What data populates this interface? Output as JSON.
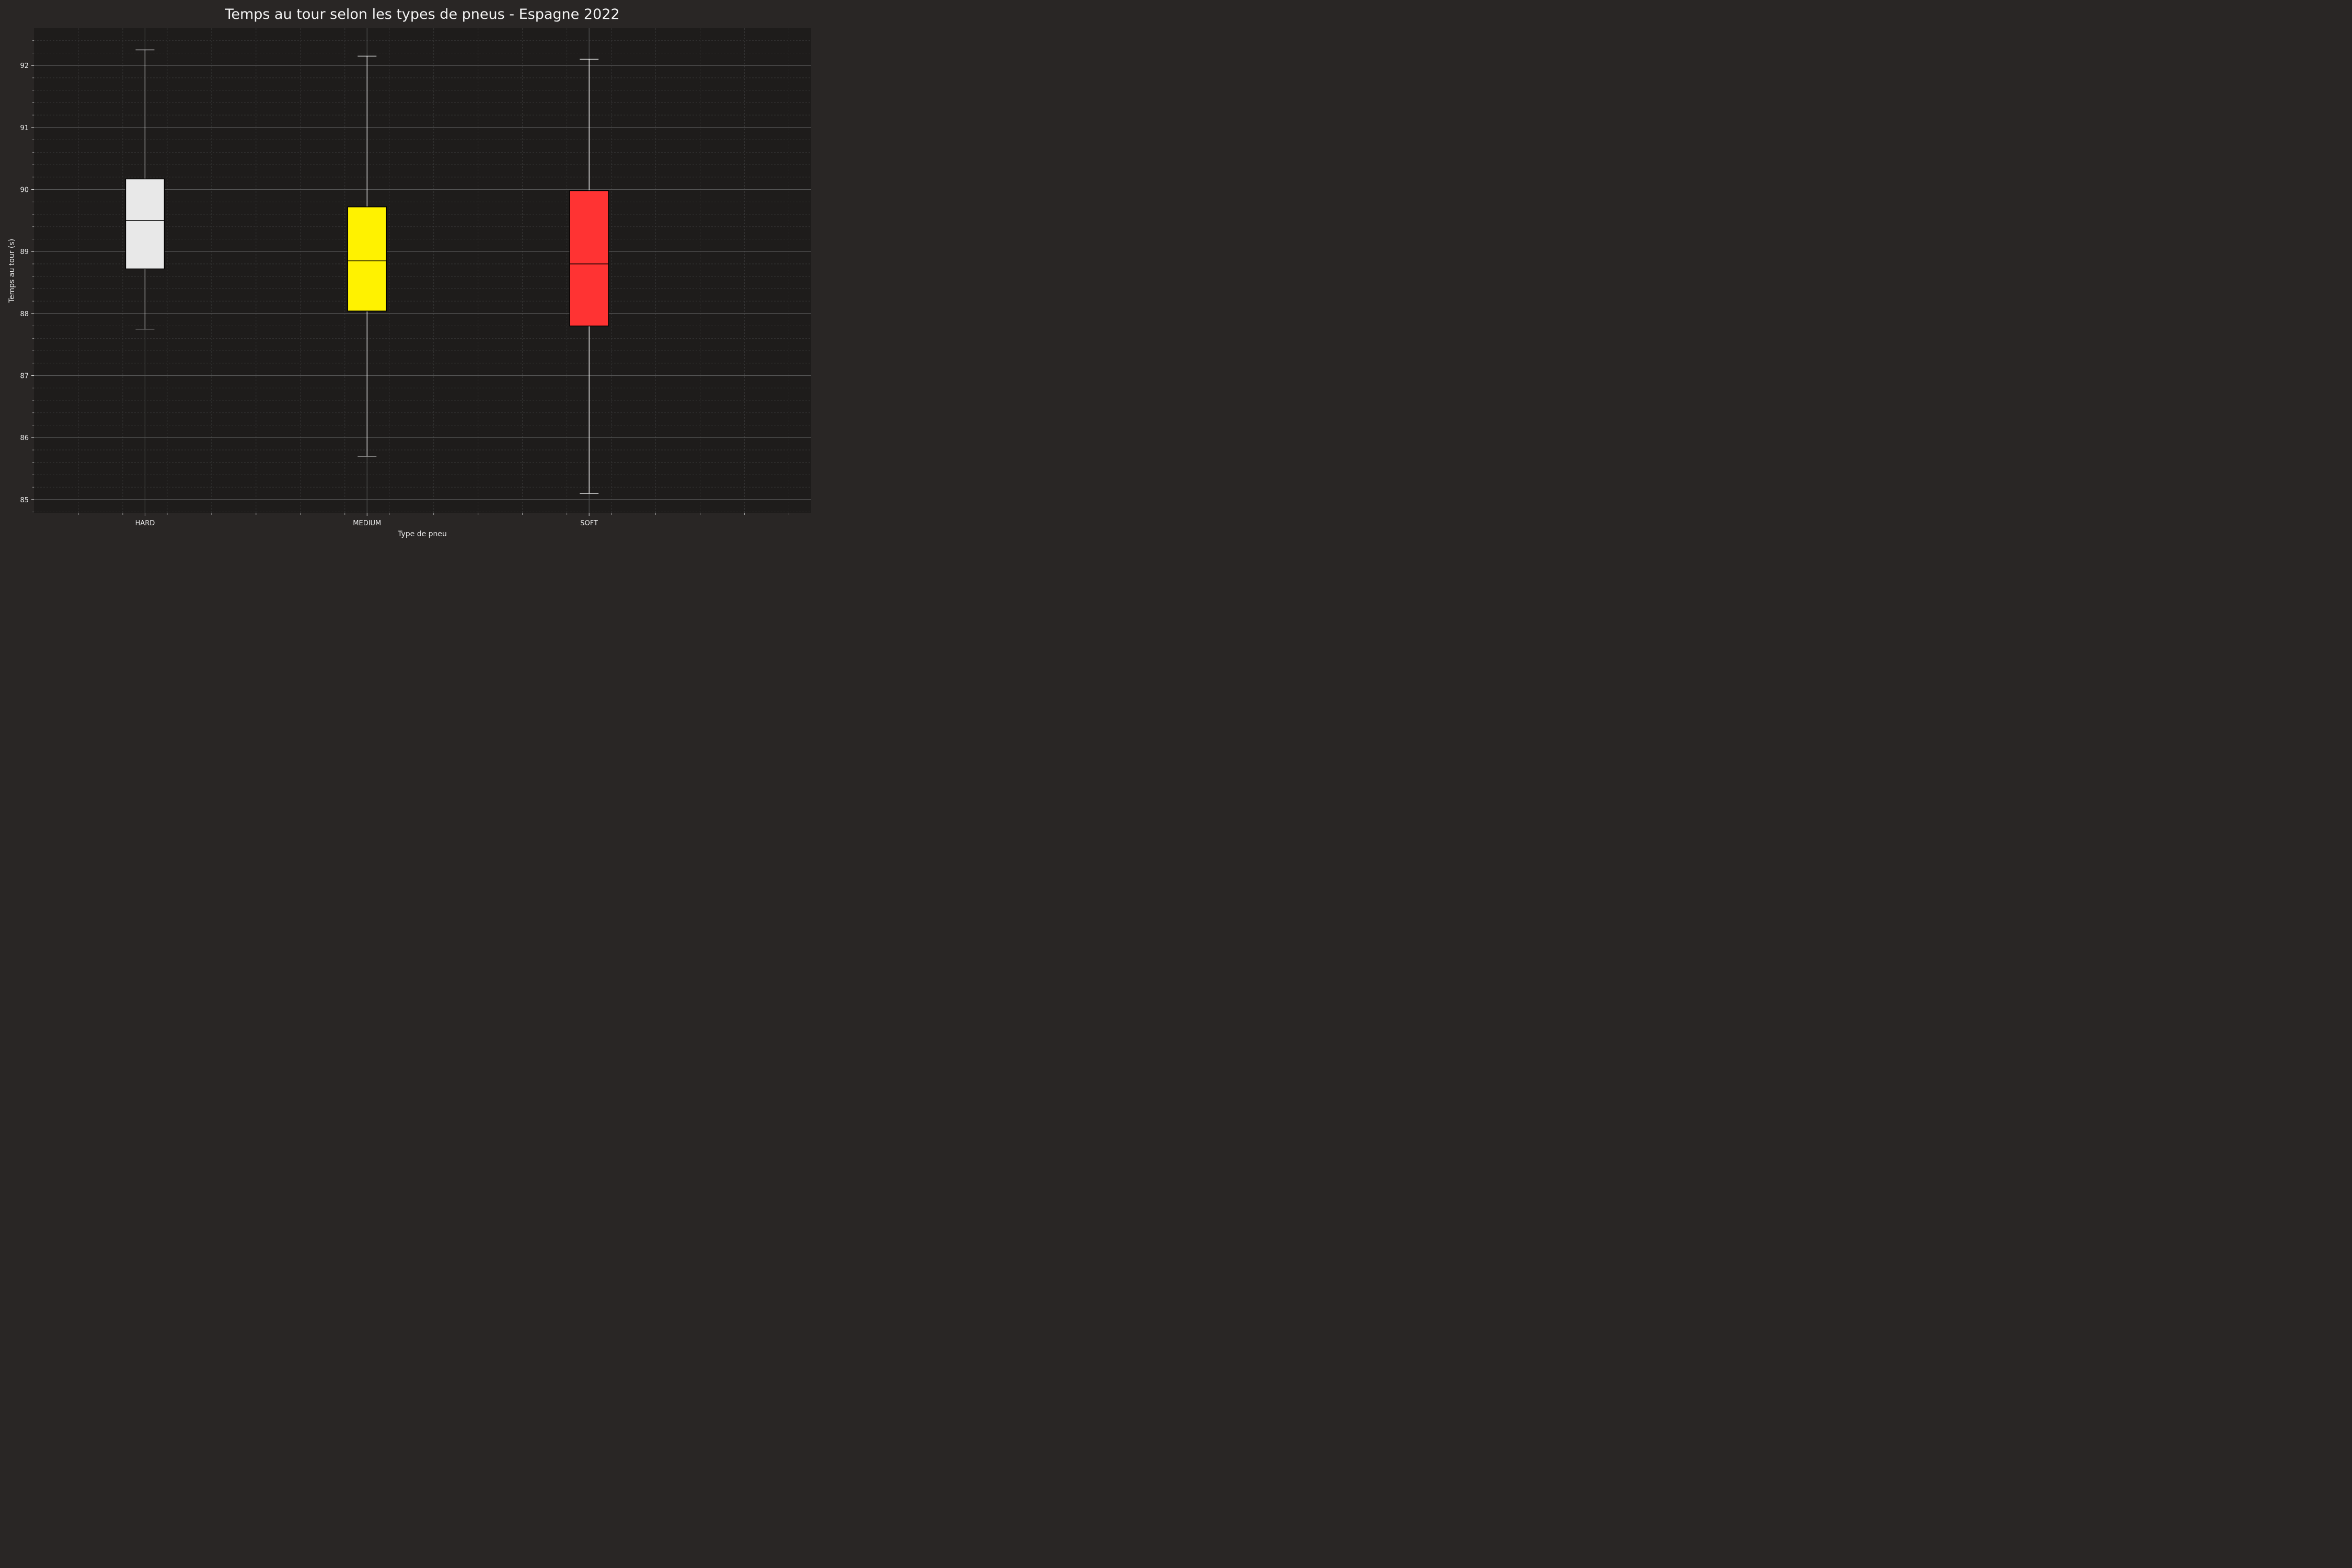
{
  "chart_data": {
    "type": "box",
    "title": "Temps au tour selon les types de pneus - Espagne 2022",
    "xlabel": "Type de pneu",
    "ylabel": "Temps au tour (s)",
    "ylim": [
      84.78,
      92.6
    ],
    "yticks": [
      85,
      86,
      87,
      88,
      89,
      90,
      91,
      92
    ],
    "grid": true,
    "categories": [
      "HARD",
      "MEDIUM",
      "SOFT"
    ],
    "boxes": [
      {
        "label": "HARD",
        "color": "#e8e8e8",
        "whisker_low": 87.75,
        "q1": 88.72,
        "median": 89.5,
        "q3": 90.17,
        "whisker_high": 92.25
      },
      {
        "label": "MEDIUM",
        "color": "#fff200",
        "whisker_low": 85.7,
        "q1": 88.04,
        "median": 88.85,
        "q3": 89.72,
        "whisker_high": 92.15
      },
      {
        "label": "SOFT",
        "color": "#ff3333",
        "whisker_low": 85.1,
        "q1": 87.8,
        "median": 88.8,
        "q3": 89.98,
        "whisker_high": 92.1
      }
    ],
    "colors": {
      "figure_bg": "#292625",
      "plot_bg": "#1e1c1b",
      "major_grid": "#555555",
      "minor_grid": "#3a3a3a",
      "whisker": "#ffffff",
      "box_edge": "#000000"
    }
  }
}
